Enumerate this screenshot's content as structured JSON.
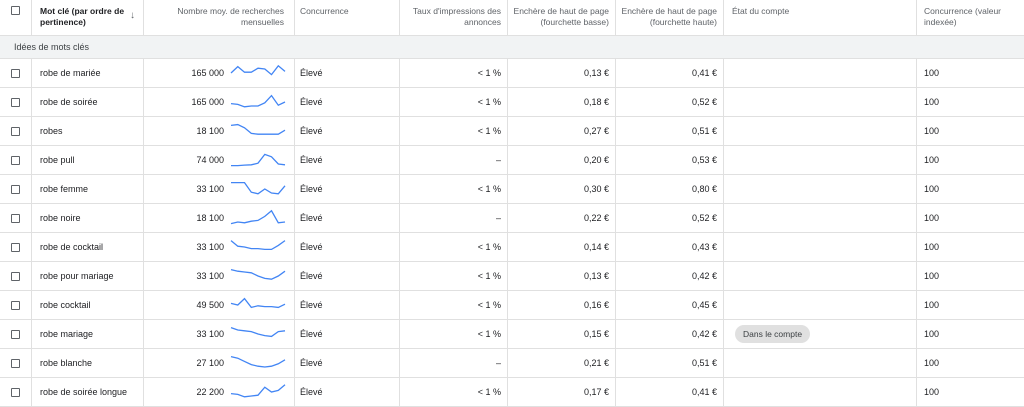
{
  "header": {
    "keyword": "Mot clé (par ordre de pertinence)",
    "volume": "Nombre moy. de recherches mensuelles",
    "competition": "Concurrence",
    "impression_share": "Taux d'impressions des annonces",
    "bid_low": "Enchère de haut de page (fourchette basse)",
    "bid_high": "Enchère de haut de page (fourchette haute)",
    "account_status": "État du compte",
    "competition_index": "Concurrence (valeur indexée)"
  },
  "group_label": "Idées de mots clés",
  "colors": {
    "trend_line": "#4285f4",
    "grid": "#e0e0e0",
    "group_bg": "#f1f3f4"
  },
  "rows": [
    {
      "keyword": "robe de mariée",
      "volume": "165 000",
      "trend": [
        50,
        90,
        55,
        55,
        80,
        75,
        40,
        95,
        60
      ],
      "competition": "Élevé",
      "impression_share": "< 1 %",
      "bid_low": "0,13 €",
      "bid_high": "0,41 €",
      "account_status": "",
      "competition_index": "100"
    },
    {
      "keyword": "robe de soirée",
      "volume": "165 000",
      "trend": [
        40,
        35,
        20,
        25,
        25,
        45,
        90,
        30,
        50
      ],
      "competition": "Élevé",
      "impression_share": "< 1 %",
      "bid_low": "0,18 €",
      "bid_high": "0,52 €",
      "account_status": "",
      "competition_index": "100"
    },
    {
      "keyword": "robes",
      "volume": "18 100",
      "trend": [
        85,
        90,
        70,
        35,
        30,
        30,
        30,
        30,
        55
      ],
      "competition": "Élevé",
      "impression_share": "< 1 %",
      "bid_low": "0,27 €",
      "bid_high": "0,51 €",
      "account_status": "",
      "competition_index": "100"
    },
    {
      "keyword": "robe pull",
      "volume": "74 000",
      "trend": [
        15,
        15,
        18,
        20,
        30,
        85,
        70,
        25,
        20
      ],
      "competition": "Élevé",
      "impression_share": "–",
      "bid_low": "0,20 €",
      "bid_high": "0,53 €",
      "account_status": "",
      "competition_index": "100"
    },
    {
      "keyword": "robe femme",
      "volume": "33 100",
      "trend": [
        90,
        90,
        90,
        30,
        20,
        50,
        25,
        20,
        70
      ],
      "competition": "Élevé",
      "impression_share": "< 1 %",
      "bid_low": "0,30 €",
      "bid_high": "0,80 €",
      "account_status": "",
      "competition_index": "100"
    },
    {
      "keyword": "robe noire",
      "volume": "18 100",
      "trend": [
        15,
        25,
        20,
        30,
        35,
        60,
        95,
        20,
        25
      ],
      "competition": "Élevé",
      "impression_share": "–",
      "bid_low": "0,22 €",
      "bid_high": "0,52 €",
      "account_status": "",
      "competition_index": "100"
    },
    {
      "keyword": "robe de cocktail",
      "volume": "33 100",
      "trend": [
        90,
        55,
        50,
        40,
        40,
        35,
        35,
        60,
        90
      ],
      "competition": "Élevé",
      "impression_share": "< 1 %",
      "bid_low": "0,14 €",
      "bid_high": "0,43 €",
      "account_status": "",
      "competition_index": "100"
    },
    {
      "keyword": "robe pour mariage",
      "volume": "33 100",
      "trend": [
        90,
        80,
        75,
        70,
        50,
        35,
        30,
        50,
        80
      ],
      "competition": "Élevé",
      "impression_share": "< 1 %",
      "bid_low": "0,13 €",
      "bid_high": "0,42 €",
      "account_status": "",
      "competition_index": "100"
    },
    {
      "keyword": "robe cocktail",
      "volume": "49 500",
      "trend": [
        60,
        50,
        90,
        35,
        45,
        40,
        40,
        35,
        55
      ],
      "competition": "Élevé",
      "impression_share": "< 1 %",
      "bid_low": "0,16 €",
      "bid_high": "0,45 €",
      "account_status": "",
      "competition_index": "100"
    },
    {
      "keyword": "robe mariage",
      "volume": "33 100",
      "trend": [
        90,
        75,
        70,
        65,
        50,
        40,
        35,
        65,
        70
      ],
      "competition": "Élevé",
      "impression_share": "< 1 %",
      "bid_low": "0,15 €",
      "bid_high": "0,42 €",
      "account_status": "Dans le compte",
      "competition_index": "100"
    },
    {
      "keyword": "robe blanche",
      "volume": "27 100",
      "trend": [
        90,
        80,
        60,
        40,
        30,
        25,
        30,
        45,
        70
      ],
      "competition": "Élevé",
      "impression_share": "–",
      "bid_low": "0,21 €",
      "bid_high": "0,51 €",
      "account_status": "",
      "competition_index": "100"
    },
    {
      "keyword": "robe de soirée longue",
      "volume": "22 200",
      "trend": [
        40,
        35,
        20,
        25,
        30,
        80,
        50,
        60,
        95
      ],
      "competition": "Élevé",
      "impression_share": "< 1 %",
      "bid_low": "0,17 €",
      "bid_high": "0,41 €",
      "account_status": "",
      "competition_index": "100"
    }
  ]
}
